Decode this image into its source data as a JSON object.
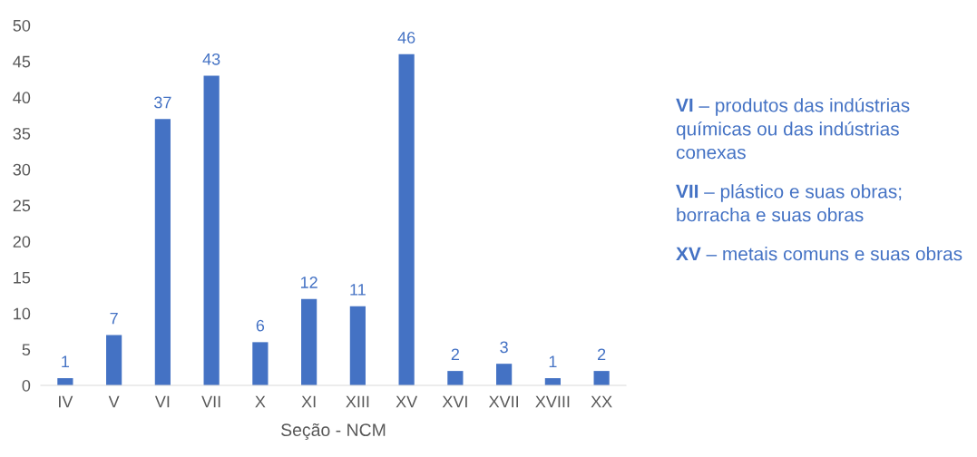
{
  "chart_data": {
    "type": "bar",
    "xlabel": "Seção - NCM",
    "categories": [
      "IV",
      "V",
      "VI",
      "VII",
      "X",
      "XI",
      "XIII",
      "XV",
      "XVI",
      "XVII",
      "XVIII",
      "XX"
    ],
    "values": [
      1,
      7,
      37,
      43,
      6,
      12,
      11,
      46,
      2,
      3,
      1,
      2
    ],
    "color": "#4472c4",
    "data_labels": true,
    "grid": false,
    "ylim": [
      0,
      50
    ],
    "yticks": [
      0,
      5,
      10,
      15,
      20,
      25,
      30,
      35,
      40,
      45,
      50
    ],
    "annotations": [
      "VI – produtos das indústrias químicas ou das indústrias conexas",
      "VII – plástico e suas obras; borracha e suas obras",
      "XV – metais comuns e suas obras"
    ]
  }
}
